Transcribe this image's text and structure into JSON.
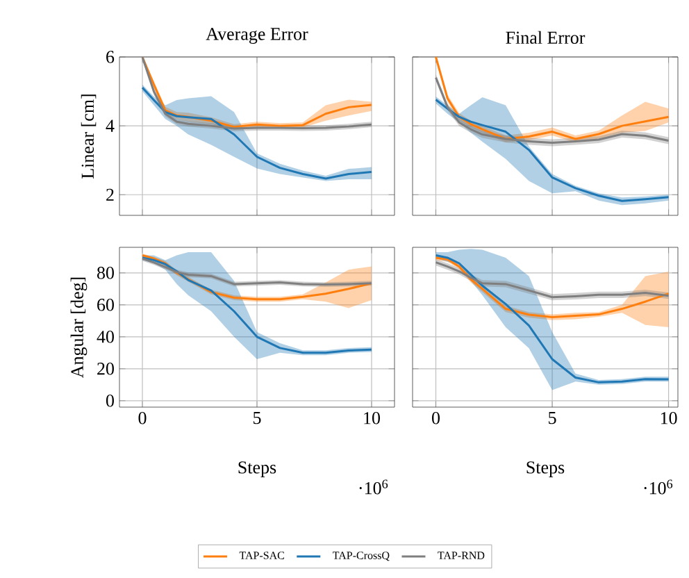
{
  "chart_data": [
    {
      "type": "line",
      "title": "Average Error",
      "ylabel": "Linear [cm]",
      "x": [
        0,
        0.5,
        1,
        1.5,
        2,
        3,
        4,
        5,
        6,
        7,
        8,
        9,
        10
      ],
      "xlim": [
        -1,
        11
      ],
      "ylim": [
        1.4,
        6
      ],
      "xticks": [
        0,
        5,
        10
      ],
      "yticks": [
        2,
        4,
        6
      ],
      "grid": true,
      "tick_labels": "y",
      "series": [
        {
          "color": "#ff7f0e",
          "values": [
            6.0,
            5.2,
            4.45,
            4.3,
            4.26,
            4.15,
            3.97,
            4.04,
            4.0,
            4.02,
            4.35,
            4.54,
            4.61
          ],
          "lower": [
            5.9,
            5.1,
            4.35,
            4.2,
            4.13,
            4.05,
            3.9,
            3.95,
            3.92,
            3.95,
            4.15,
            4.3,
            4.43
          ],
          "upper": [
            6.0,
            5.3,
            4.55,
            4.4,
            4.38,
            4.25,
            4.05,
            4.12,
            4.08,
            4.1,
            4.6,
            4.76,
            4.7
          ]
        },
        {
          "color": "#1f77b4",
          "values": [
            5.11,
            4.75,
            4.4,
            4.28,
            4.25,
            4.2,
            3.75,
            3.1,
            2.78,
            2.6,
            2.47,
            2.6,
            2.66
          ],
          "lower": [
            5.0,
            4.6,
            4.2,
            4.0,
            3.75,
            3.45,
            3.1,
            2.76,
            2.6,
            2.5,
            2.4,
            2.45,
            2.45
          ],
          "upper": [
            5.2,
            4.85,
            4.6,
            4.75,
            4.8,
            4.86,
            4.4,
            3.2,
            2.9,
            2.7,
            2.55,
            2.75,
            2.8
          ]
        },
        {
          "color": "#7f7f7f",
          "values": [
            6.0,
            5.0,
            4.35,
            4.12,
            4.06,
            4.0,
            3.92,
            3.94,
            3.94,
            3.93,
            3.94,
            3.98,
            4.04
          ],
          "lower": [
            5.9,
            4.9,
            4.27,
            4.04,
            3.98,
            3.92,
            3.84,
            3.86,
            3.86,
            3.85,
            3.86,
            3.9,
            3.96
          ],
          "upper": [
            6.0,
            5.1,
            4.43,
            4.2,
            4.14,
            4.08,
            4.0,
            4.02,
            4.02,
            4.01,
            4.02,
            4.06,
            4.12
          ]
        }
      ]
    },
    {
      "type": "line",
      "title": "Final Error",
      "x": [
        0,
        0.5,
        1,
        1.5,
        2,
        3,
        4,
        5,
        6,
        7,
        8,
        9,
        10
      ],
      "xlim": [
        -1,
        10.4
      ],
      "ylim": [
        1.4,
        6
      ],
      "xticks": [
        0,
        5,
        10
      ],
      "yticks": [
        2,
        4,
        6
      ],
      "grid": true,
      "tick_labels": false,
      "series": [
        {
          "color": "#ff7f0e",
          "values": [
            6.0,
            4.8,
            4.26,
            4.05,
            3.9,
            3.62,
            3.69,
            3.83,
            3.62,
            3.76,
            4.0,
            4.13,
            4.26
          ],
          "lower": [
            5.9,
            4.7,
            4.15,
            3.95,
            3.8,
            3.52,
            3.58,
            3.72,
            3.52,
            3.63,
            3.8,
            3.85,
            4.1
          ],
          "upper": [
            6.0,
            4.9,
            4.37,
            4.15,
            4.0,
            3.72,
            3.8,
            3.95,
            3.72,
            3.86,
            4.3,
            4.7,
            4.5
          ]
        },
        {
          "color": "#1f77b4",
          "values": [
            4.76,
            4.5,
            4.26,
            4.12,
            4.02,
            3.83,
            3.3,
            2.5,
            2.19,
            1.97,
            1.82,
            1.87,
            1.93
          ],
          "lower": [
            4.65,
            4.35,
            4.1,
            3.8,
            3.54,
            3.04,
            2.4,
            2.04,
            2.1,
            1.83,
            1.7,
            1.75,
            1.83
          ],
          "upper": [
            4.85,
            4.6,
            4.35,
            4.6,
            4.83,
            4.6,
            3.4,
            2.6,
            2.26,
            2.04,
            1.92,
            1.95,
            2.0
          ]
        },
        {
          "color": "#7f7f7f",
          "values": [
            5.4,
            4.55,
            4.1,
            3.9,
            3.75,
            3.62,
            3.55,
            3.51,
            3.55,
            3.6,
            3.76,
            3.71,
            3.57
          ],
          "lower": [
            5.3,
            4.45,
            4.0,
            3.8,
            3.65,
            3.52,
            3.45,
            3.41,
            3.45,
            3.5,
            3.66,
            3.61,
            3.47
          ],
          "upper": [
            5.5,
            4.65,
            4.2,
            4.0,
            3.85,
            3.72,
            3.65,
            3.61,
            3.65,
            3.7,
            3.86,
            3.81,
            3.67
          ]
        }
      ]
    },
    {
      "type": "line",
      "ylabel": "Angular [deg]",
      "xlabel": "Steps",
      "annotations": [
        "·10$^{6}$"
      ],
      "x": [
        0,
        0.5,
        1,
        1.5,
        2,
        3,
        4,
        5,
        6,
        7,
        8,
        9,
        10
      ],
      "xlim": [
        -1,
        11
      ],
      "ylim": [
        -4,
        96
      ],
      "xticks": [
        0,
        5,
        10
      ],
      "yticks": [
        0,
        20,
        40,
        60,
        80
      ],
      "grid": true,
      "legend": "bottom",
      "series": [
        {
          "name": "TAP-SAC",
          "color": "#ff7f0e",
          "values": [
            91,
            89,
            86,
            80,
            76,
            68,
            64.5,
            63.5,
            63.5,
            65,
            67,
            70,
            73.5
          ],
          "lower": [
            90,
            88,
            84.5,
            78.5,
            74.5,
            66.5,
            63,
            62,
            62,
            63.5,
            62,
            58,
            63
          ],
          "upper": [
            92,
            90,
            87.5,
            81.5,
            77.5,
            69.5,
            66,
            65,
            65,
            66.5,
            74,
            82,
            84
          ]
        },
        {
          "name": "TAP-CrossQ",
          "color": "#1f77b4",
          "values": [
            89.5,
            88,
            85.5,
            81,
            75.5,
            69,
            56,
            40,
            33,
            30,
            30,
            31.4,
            32
          ],
          "lower": [
            88,
            86,
            82,
            73,
            66,
            56,
            40,
            26,
            30,
            28.5,
            28.5,
            30,
            30.5
          ],
          "upper": [
            91,
            91,
            88,
            91,
            93,
            93,
            75,
            43,
            36,
            31.5,
            31.5,
            33,
            33.5
          ]
        },
        {
          "name": "TAP-RND",
          "color": "#7f7f7f",
          "values": [
            89,
            86.5,
            83.7,
            80.5,
            78.8,
            78,
            73,
            73.5,
            74,
            73,
            72.7,
            73,
            73.5
          ],
          "lower": [
            87.5,
            85,
            82.2,
            79,
            77.3,
            76.5,
            71.5,
            72,
            72.5,
            71.5,
            71.2,
            71.5,
            72
          ],
          "upper": [
            90.5,
            88,
            85.2,
            82,
            80.3,
            79.5,
            74.5,
            75,
            75.5,
            74.5,
            74.2,
            74.5,
            75
          ]
        }
      ]
    },
    {
      "type": "line",
      "xlabel": "Steps",
      "annotations": [
        "·10$^{6}$"
      ],
      "x": [
        0,
        0.5,
        1,
        1.5,
        2,
        3,
        4,
        5,
        6,
        7,
        8,
        9,
        10
      ],
      "xlim": [
        -1,
        10.4
      ],
      "ylim": [
        -4,
        96
      ],
      "xticks": [
        0,
        5,
        10
      ],
      "yticks": [
        0,
        20,
        40,
        60,
        80
      ],
      "grid": true,
      "tick_labels": "x",
      "series": [
        {
          "color": "#ff7f0e",
          "values": [
            89.5,
            88.5,
            84,
            76,
            70,
            57.5,
            53.8,
            52.3,
            53.2,
            54,
            57.5,
            62,
            67
          ],
          "lower": [
            88,
            87,
            82.5,
            74,
            68,
            55.5,
            52,
            50.5,
            51,
            52.5,
            55,
            47.4,
            46
          ],
          "upper": [
            91,
            90,
            85.5,
            78,
            72,
            59.5,
            55.5,
            54,
            55,
            55.5,
            60,
            78,
            80.8
          ]
        },
        {
          "color": "#1f77b4",
          "values": [
            91,
            89.5,
            86,
            79,
            72,
            60.5,
            47,
            26,
            14.5,
            11.5,
            12,
            13.5,
            13.4
          ],
          "lower": [
            89,
            87,
            85,
            75,
            66,
            46,
            32.8,
            6.7,
            12,
            10,
            10.5,
            12,
            12
          ],
          "upper": [
            93,
            93,
            94.5,
            95,
            94.5,
            89.5,
            78,
            43,
            17,
            13,
            13.5,
            15,
            15
          ]
        },
        {
          "color": "#7f7f7f",
          "values": [
            86.6,
            84,
            81,
            77,
            73.5,
            73,
            69,
            64.8,
            65.4,
            66.3,
            66.3,
            67.5,
            65.7
          ],
          "lower": [
            84.6,
            82,
            79,
            75,
            71.5,
            71,
            67,
            62.8,
            63.4,
            64.3,
            64.3,
            65.5,
            63.7
          ],
          "upper": [
            88.6,
            86,
            83,
            79,
            75.5,
            75,
            71,
            66.8,
            67.4,
            68.3,
            68.3,
            69.5,
            67.7
          ]
        }
      ]
    }
  ]
}
